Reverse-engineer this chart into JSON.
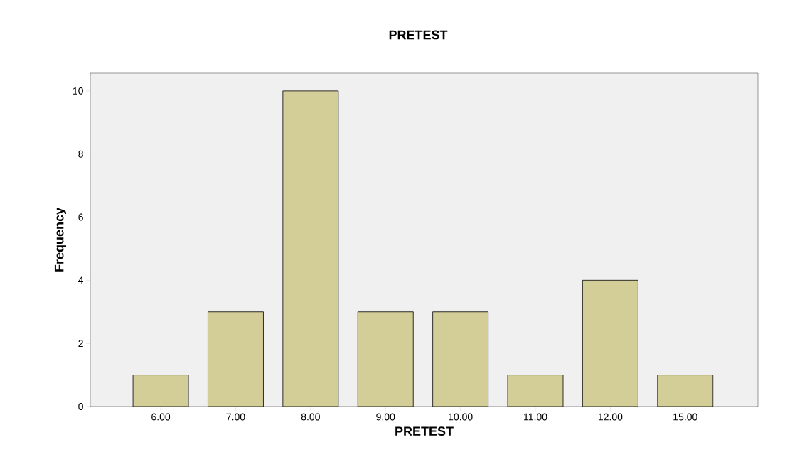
{
  "chart_data": {
    "type": "bar",
    "title": "PRETEST",
    "xlabel": "PRETEST",
    "ylabel": "Frequency",
    "categories": [
      "6.00",
      "7.00",
      "8.00",
      "9.00",
      "10.00",
      "11.00",
      "12.00",
      "15.00"
    ],
    "values": [
      1,
      3,
      10,
      3,
      3,
      1,
      4,
      1
    ],
    "color": "#d3cd98",
    "ylim": [
      0,
      10.56
    ],
    "yticks": [
      0,
      2,
      4,
      6,
      8,
      10
    ],
    "grid": false
  }
}
